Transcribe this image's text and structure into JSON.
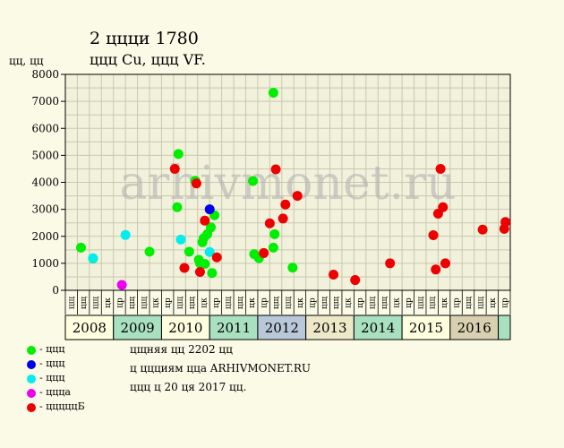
{
  "header": {
    "title": "2 ццци 1780",
    "subtitle": "ццц Cu, ццц VF."
  },
  "chart_data": {
    "type": "scatter",
    "ylabel": "цц, цц",
    "ylim": [
      0,
      8000
    ],
    "yticks": [
      0,
      1000,
      2000,
      3000,
      4000,
      5000,
      6000,
      7000,
      8000
    ],
    "grid": true,
    "watermark": "arhivmonet.ru",
    "slot_labels": [
      "цщ",
      "цщ",
      "цщ",
      "цк",
      "цр",
      "цщ",
      "цщ",
      "цк",
      "цр",
      "цщ",
      "цщ",
      "цк",
      "цр",
      "цщ",
      "цщ",
      "цк",
      "цр",
      "цщ",
      "цщ",
      "цк",
      "цр",
      "цщ",
      "цщ",
      "цк",
      "цр",
      "цщ",
      "цщ",
      "цк",
      "цр",
      "цщ",
      "цщ",
      "цк",
      "цр",
      "цщ",
      "цщ",
      "цк",
      "цр"
    ],
    "years": [
      {
        "label": "2008",
        "color": "#ffffe0"
      },
      {
        "label": "2009",
        "color": "#a8e0c0"
      },
      {
        "label": "2010",
        "color": "#ffffe0"
      },
      {
        "label": "2011",
        "color": "#a8e0c0"
      },
      {
        "label": "2012",
        "color": "#b8c8d8"
      },
      {
        "label": "2013",
        "color": "#ece8c8"
      },
      {
        "label": "2014",
        "color": "#a8e0c0"
      },
      {
        "label": "2015",
        "color": "#ffffe0"
      },
      {
        "label": "2016",
        "color": "#d8d0b0"
      }
    ],
    "series": [
      {
        "name": "- ццц",
        "color": "#00ee00",
        "points": [
          [
            1.3,
            1580
          ],
          [
            2.3,
            1180
          ],
          [
            7.0,
            1430
          ],
          [
            9.3,
            3080
          ],
          [
            9.4,
            5050
          ],
          [
            10.3,
            1430
          ],
          [
            10.8,
            4060
          ],
          [
            11.1,
            1130
          ],
          [
            11.2,
            1000
          ],
          [
            11.4,
            1780
          ],
          [
            11.5,
            1930
          ],
          [
            11.6,
            980
          ],
          [
            11.8,
            2080
          ],
          [
            12.1,
            2330
          ],
          [
            12.2,
            640
          ],
          [
            12.4,
            2780
          ],
          [
            15.6,
            4050
          ],
          [
            15.7,
            1340
          ],
          [
            16.1,
            1190
          ],
          [
            17.3,
            7320
          ],
          [
            17.4,
            2080
          ],
          [
            17.3,
            1580
          ],
          [
            18.9,
            840
          ]
        ]
      },
      {
        "name": "- ццц",
        "color": "#0000ee",
        "points": [
          [
            12.0,
            3000
          ]
        ]
      },
      {
        "name": "- ццц",
        "color": "#00eeee",
        "points": [
          [
            2.3,
            1190
          ],
          [
            5.0,
            2050
          ],
          [
            9.6,
            1880
          ],
          [
            12.0,
            1420
          ]
        ]
      },
      {
        "name": "- ццца",
        "color": "#ee00ee",
        "points": [
          [
            4.7,
            200
          ]
        ]
      },
      {
        "name": "- цццццБ",
        "color": "#ee0000",
        "points": [
          [
            9.1,
            4500
          ],
          [
            9.9,
            830
          ],
          [
            10.9,
            3960
          ],
          [
            11.2,
            680
          ],
          [
            11.6,
            2580
          ],
          [
            12.6,
            1220
          ],
          [
            16.5,
            1380
          ],
          [
            17.0,
            2480
          ],
          [
            17.5,
            4480
          ],
          [
            18.1,
            2660
          ],
          [
            18.3,
            3180
          ],
          [
            19.3,
            3500
          ],
          [
            22.3,
            580
          ],
          [
            24.1,
            380
          ],
          [
            27.0,
            1000
          ],
          [
            30.6,
            2040
          ],
          [
            30.8,
            770
          ],
          [
            31.0,
            2840
          ],
          [
            31.2,
            4500
          ],
          [
            31.4,
            3080
          ],
          [
            31.6,
            1000
          ],
          [
            34.7,
            2250
          ],
          [
            36.5,
            2280
          ],
          [
            36.6,
            2530
          ]
        ]
      }
    ]
  },
  "notes": [
    "цщняя цц 2202 цц",
    "ц ццциям цца ARHIVMONET.RU",
    "ццц ц 20 ця 2017 цц."
  ]
}
